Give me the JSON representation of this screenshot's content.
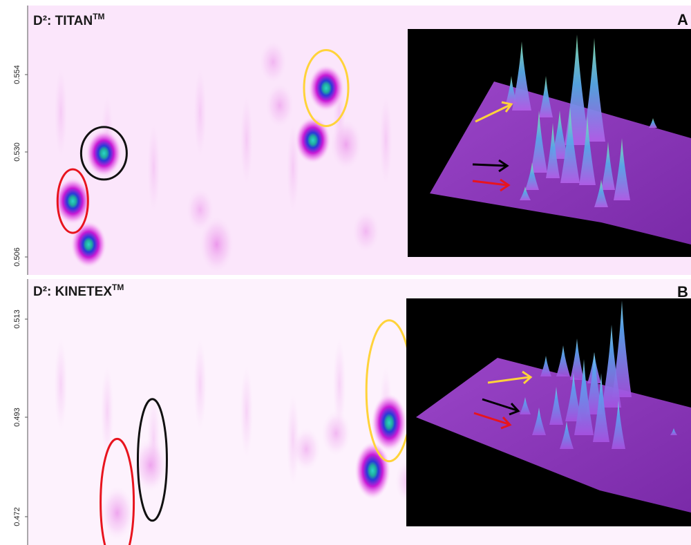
{
  "chart_data": [
    {
      "type": "heatmap",
      "panel": "A",
      "title": "D²: TITAN",
      "title_super": "TM",
      "ylabel": "",
      "y_ticks": [
        "0.554",
        "0.530",
        "0.506"
      ],
      "ylim": [
        0.5,
        0.562
      ],
      "peaks": [
        {
          "x": 0.45,
          "y": 0.543,
          "strength": 1.0
        },
        {
          "x": 0.43,
          "y": 0.531,
          "strength": 0.95
        },
        {
          "x": 0.48,
          "y": 0.53,
          "strength": 0.4
        },
        {
          "x": 0.115,
          "y": 0.528,
          "strength": 0.9
        },
        {
          "x": 0.068,
          "y": 0.517,
          "strength": 0.95
        },
        {
          "x": 0.092,
          "y": 0.507,
          "strength": 0.85
        },
        {
          "x": 0.285,
          "y": 0.507,
          "strength": 0.55
        },
        {
          "x": 0.37,
          "y": 0.549,
          "strength": 0.2
        },
        {
          "x": 0.38,
          "y": 0.539,
          "strength": 0.25
        },
        {
          "x": 0.26,
          "y": 0.515,
          "strength": 0.2
        },
        {
          "x": 0.51,
          "y": 0.51,
          "strength": 0.18
        }
      ],
      "annotations": [
        {
          "color": "yellow",
          "x": 0.45,
          "y": 0.543
        },
        {
          "color": "black",
          "x": 0.115,
          "y": 0.528
        },
        {
          "color": "red",
          "x": 0.068,
          "y": 0.517
        }
      ],
      "inset": {
        "type": "3d-surface",
        "label": "A"
      }
    },
    {
      "type": "heatmap",
      "panel": "B",
      "title": "D²: KINETEX",
      "title_super": "TM",
      "ylabel": "",
      "y_ticks": [
        "0.513",
        "0.493",
        "0.472"
      ],
      "ylim": [
        0.468,
        0.518
      ],
      "peaks": [
        {
          "x": 0.545,
          "y": 0.491,
          "strength": 1.0
        },
        {
          "x": 0.52,
          "y": 0.482,
          "strength": 0.95
        },
        {
          "x": 0.185,
          "y": 0.483,
          "strength": 0.45
        },
        {
          "x": 0.135,
          "y": 0.474,
          "strength": 0.45
        },
        {
          "x": 0.465,
          "y": 0.489,
          "strength": 0.25
        },
        {
          "x": 0.42,
          "y": 0.486,
          "strength": 0.2
        },
        {
          "x": 0.575,
          "y": 0.48,
          "strength": 0.2
        }
      ],
      "annotations": [
        {
          "color": "yellow",
          "x": 0.545,
          "y": 0.497
        },
        {
          "color": "black",
          "x": 0.188,
          "y": 0.484
        },
        {
          "color": "red",
          "x": 0.135,
          "y": 0.476
        }
      ],
      "inset": {
        "type": "3d-surface",
        "label": "B"
      }
    }
  ],
  "colors": {
    "background_tint": "#fbe6fb",
    "heat_mid": "#e020d8",
    "heat_core": "#2ad0c8",
    "surface": "#9a3dc4",
    "inset_bg": "#000000",
    "yellow": "#ffd33a",
    "black": "#111111",
    "red": "#e8141e"
  }
}
